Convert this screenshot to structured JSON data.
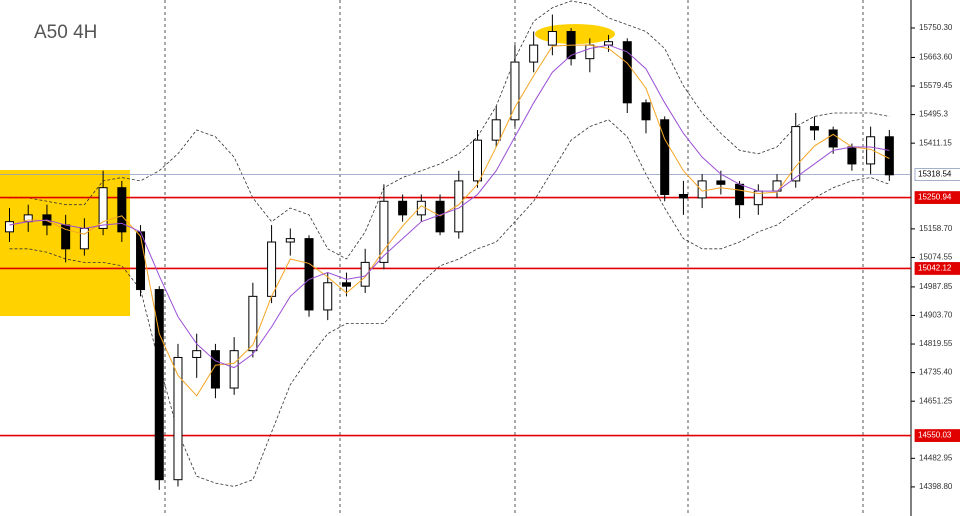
{
  "chart_data": {
    "type": "candlestick",
    "title": "A50 4H",
    "ylim": [
      14313.1,
      15832.8
    ],
    "yticks": [
      {
        "value": 15750.3,
        "label": "15750.30"
      },
      {
        "value": 15663.6,
        "label": "15663.60"
      },
      15579.45,
      15495.3,
      {
        "value": 15411.15,
        "label": "15411.15"
      },
      {
        "value": 15158.7,
        "label": "15158.70"
      },
      15074.55,
      14987.85,
      {
        "value": 14903.7,
        "label": "14903.70"
      },
      14819.55,
      {
        "value": 14735.4,
        "label": "14735.40"
      },
      14651.25,
      14482.95,
      {
        "value": 14398.8,
        "label": "14398.80"
      }
    ],
    "up_color": "#ffffff",
    "down_color": "#000000",
    "open": [
      15150,
      15180,
      15200,
      15170,
      15100,
      15160,
      15280,
      15150,
      14980,
      14420,
      14780,
      14800,
      14690,
      14800,
      14960,
      15120,
      15130,
      14920,
      15000,
      14990,
      15060,
      15240,
      15200,
      15240,
      15150,
      15300,
      15420,
      15480,
      15650,
      15700,
      15740,
      15660,
      15700,
      15710,
      15530,
      15480,
      15260,
      15250,
      15300,
      15290,
      15230,
      15270,
      15300,
      15460,
      15450,
      15400,
      15350,
      15430
    ],
    "high": [
      15220,
      15230,
      15230,
      15200,
      15190,
      15330,
      15300,
      15170,
      14990,
      14820,
      14850,
      14820,
      14840,
      15000,
      15170,
      15160,
      15140,
      15030,
      15030,
      15100,
      15290,
      15260,
      15260,
      15260,
      15330,
      15450,
      15520,
      15700,
      15740,
      15790,
      15750,
      15720,
      15730,
      15720,
      15540,
      15490,
      15300,
      15320,
      15330,
      15300,
      15290,
      15320,
      15500,
      15490,
      15460,
      15410,
      15460,
      15450
    ],
    "low": [
      15120,
      15150,
      15140,
      15060,
      15080,
      15140,
      15120,
      14960,
      14390,
      14400,
      14720,
      14660,
      14670,
      14780,
      14940,
      15080,
      14900,
      14890,
      14960,
      14970,
      15040,
      15180,
      15180,
      15140,
      15130,
      15280,
      15400,
      15460,
      15620,
      15670,
      15640,
      15620,
      15680,
      15500,
      15440,
      15240,
      15200,
      15220,
      15260,
      15190,
      15200,
      15250,
      15280,
      15420,
      15380,
      15330,
      15320,
      15300
    ],
    "close": [
      15180,
      15200,
      15170,
      15100,
      15160,
      15280,
      15150,
      14980,
      14420,
      14780,
      14800,
      14690,
      14800,
      14960,
      15120,
      15130,
      14920,
      15000,
      14990,
      15060,
      15240,
      15200,
      15240,
      15150,
      15300,
      15420,
      15480,
      15650,
      15700,
      15740,
      15660,
      15700,
      15710,
      15530,
      15480,
      15260,
      15250,
      15300,
      15290,
      15230,
      15270,
      15300,
      15460,
      15450,
      15400,
      15350,
      15430,
      15318
    ],
    "indicators": [
      {
        "color": "#f5a623",
        "dashed": false,
        "values": [
          15170,
          15185,
          15183,
          15157,
          15143,
          15180,
          15197,
          15137,
          14850,
          14727,
          14667,
          14757,
          14763,
          14817,
          14960,
          15070,
          15057,
          15017,
          14970,
          15017,
          15097,
          15167,
          15227,
          15197,
          15230,
          15290,
          15400,
          15517,
          15610,
          15697,
          15700,
          15700,
          15690,
          15647,
          15573,
          15423,
          15330,
          15270,
          15280,
          15273,
          15263,
          15267,
          15343,
          15403,
          15437,
          15400,
          15393,
          15366
        ]
      },
      {
        "color": "#9b4fd6",
        "dashed": false,
        "values": [
          15170,
          15180,
          15185,
          15170,
          15160,
          15170,
          15175,
          15150,
          15020,
          14900,
          14820,
          14770,
          14750,
          14790,
          14870,
          14960,
          15010,
          15030,
          15010,
          15020,
          15080,
          15130,
          15180,
          15200,
          15220,
          15260,
          15330,
          15430,
          15530,
          15620,
          15670,
          15690,
          15700,
          15680,
          15630,
          15530,
          15440,
          15370,
          15320,
          15290,
          15270,
          15270,
          15310,
          15350,
          15390,
          15400,
          15400,
          15390
        ]
      },
      {
        "color": "#333333",
        "dashed": true,
        "values": [
          15250,
          15250,
          15240,
          15230,
          15230,
          15300,
          15310,
          15300,
          15330,
          15380,
          15450,
          15430,
          15370,
          15250,
          15180,
          15220,
          15200,
          15100,
          15070,
          15150,
          15280,
          15310,
          15330,
          15350,
          15380,
          15430,
          15520,
          15660,
          15770,
          15810,
          15830,
          15820,
          15780,
          15760,
          15740,
          15690,
          15580,
          15500,
          15440,
          15390,
          15380,
          15400,
          15460,
          15490,
          15500,
          15500,
          15500,
          15490
        ]
      },
      {
        "color": "#333333",
        "dashed": true,
        "values": [
          15100,
          15100,
          15090,
          15070,
          15060,
          15060,
          15050,
          14980,
          14760,
          14560,
          14430,
          14410,
          14400,
          14420,
          14560,
          14700,
          14780,
          14850,
          14880,
          14880,
          14880,
          14940,
          15000,
          15050,
          15070,
          15100,
          15120,
          15180,
          15240,
          15330,
          15420,
          15460,
          15480,
          15430,
          15320,
          15220,
          15130,
          15100,
          15100,
          15120,
          15150,
          15170,
          15210,
          15250,
          15280,
          15300,
          15310,
          15290
        ]
      }
    ],
    "levels": [
      {
        "value": 15318.54,
        "color": "#8a9ac0",
        "label_bg": "#ffffff",
        "label_fg": "#000000"
      },
      {
        "value": 15250.94,
        "color": "#e00000",
        "label_bg": "#e00000",
        "label_fg": "#ffffff"
      },
      {
        "value": 15042.12,
        "color": "#e00000",
        "label_bg": "#e00000",
        "label_fg": "#ffffff"
      },
      {
        "value": 14550.03,
        "color": "#e00000",
        "label_bg": "#e00000",
        "label_fg": "#ffffff"
      }
    ]
  }
}
